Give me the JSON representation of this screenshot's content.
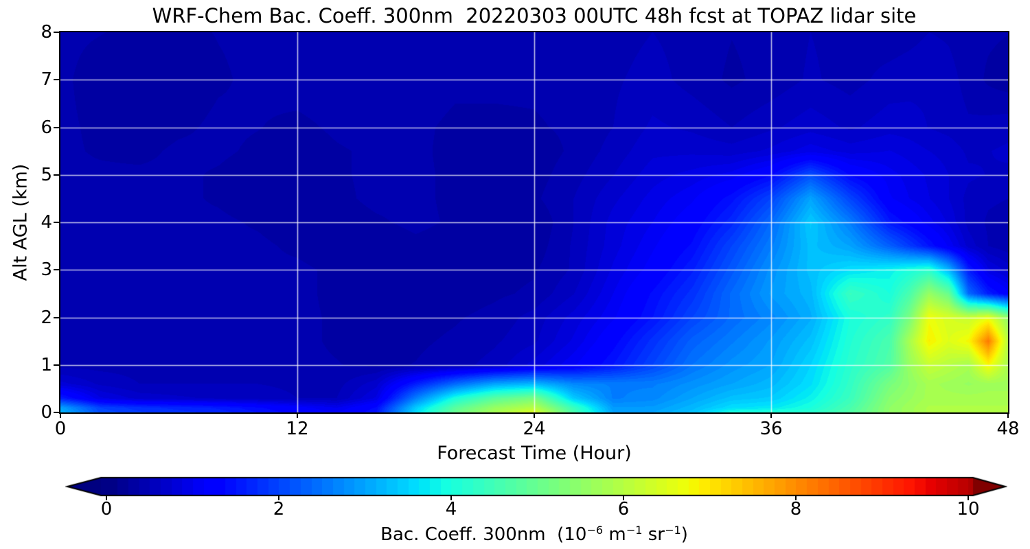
{
  "title": "WRF-Chem Bac. Coeff. 300nm  20220303 00UTC 48h fcst at TOPAZ lidar site",
  "axes": {
    "x": {
      "label": "Forecast Time (Hour)",
      "range": [
        0,
        48
      ],
      "ticks": [
        0,
        12,
        24,
        36,
        48
      ],
      "gridlines": [
        12,
        24,
        36
      ]
    },
    "y": {
      "label": "Alt AGL (km)",
      "range": [
        0,
        8
      ],
      "ticks": [
        0,
        1,
        2,
        3,
        4,
        5,
        6,
        7,
        8
      ],
      "gridlines": [
        1,
        2,
        3,
        4,
        5,
        6,
        7
      ]
    }
  },
  "colorbar": {
    "ticks": [
      0,
      2,
      4,
      6,
      8,
      10
    ],
    "range": [
      0,
      10
    ],
    "extend": "both",
    "colormap": "jet",
    "label_segments": [
      [
        "text",
        "Bac. Coeff. 300nm  (10"
      ],
      [
        "sup",
        "−6"
      ],
      [
        "text",
        " m"
      ],
      [
        "sup",
        "−1"
      ],
      [
        "text",
        " sr"
      ],
      [
        "sup",
        "−1"
      ],
      [
        "text",
        ")"
      ]
    ]
  },
  "chart_data": {
    "type": "heatmap",
    "title": "WRF-Chem Bac. Coeff. 300nm  20220303 00UTC 48h fcst at TOPAZ lidar site",
    "xlabel": "Forecast Time (Hour)",
    "ylabel": "Alt AGL (km)",
    "values_units": "1e-6 m^-1 sr^-1",
    "colormap": "jet",
    "vmin": 0,
    "vmax": 10,
    "color_scale_t_max": 10.5,
    "level_step": 0.125,
    "grid": true,
    "grid_color": "rgba(255,255,255,0.75)",
    "x_hours": [
      0,
      2,
      4,
      6,
      8,
      10,
      12,
      14,
      16,
      18,
      20,
      22,
      24,
      26,
      28,
      30,
      32,
      34,
      36,
      38,
      40,
      42,
      43,
      44,
      45,
      46,
      47,
      48
    ],
    "y_km": [
      8,
      7,
      6,
      5.5,
      5,
      4.5,
      4,
      3.5,
      3,
      2.5,
      2,
      1.5,
      1,
      0.6,
      0.3,
      0.1,
      0
    ],
    "values": [
      [
        0.4,
        0.38,
        0.35,
        0.35,
        0.38,
        0.4,
        0.42,
        0.45,
        0.45,
        0.45,
        0.42,
        0.4,
        0.4,
        0.42,
        0.45,
        0.5,
        0.45,
        0.38,
        0.42,
        0.5,
        0.45,
        0.42,
        0.45,
        0.5,
        0.48,
        0.42,
        0.4,
        0.38
      ],
      [
        0.4,
        0.32,
        0.26,
        0.3,
        0.36,
        0.4,
        0.44,
        0.46,
        0.45,
        0.44,
        0.4,
        0.4,
        0.4,
        0.42,
        0.48,
        0.55,
        0.45,
        0.35,
        0.42,
        0.52,
        0.45,
        0.55,
        0.58,
        0.6,
        0.55,
        0.45,
        0.35,
        0.3
      ],
      [
        0.4,
        0.35,
        0.3,
        0.35,
        0.4,
        0.38,
        0.34,
        0.4,
        0.44,
        0.4,
        0.35,
        0.35,
        0.36,
        0.4,
        0.5,
        0.65,
        0.6,
        0.5,
        0.6,
        0.7,
        0.6,
        0.7,
        0.68,
        0.62,
        0.58,
        0.52,
        0.55,
        0.58
      ],
      [
        0.4,
        0.36,
        0.34,
        0.4,
        0.4,
        0.35,
        0.3,
        0.36,
        0.4,
        0.4,
        0.34,
        0.3,
        0.3,
        0.4,
        0.55,
        0.72,
        0.72,
        0.68,
        0.78,
        0.95,
        0.82,
        0.88,
        0.82,
        0.75,
        0.7,
        0.6,
        0.62,
        0.65
      ],
      [
        0.4,
        0.4,
        0.4,
        0.4,
        0.36,
        0.3,
        0.3,
        0.36,
        0.4,
        0.4,
        0.35,
        0.3,
        0.32,
        0.45,
        0.62,
        0.82,
        0.92,
        1.05,
        1.35,
        2.1,
        1.35,
        1.05,
        0.95,
        0.85,
        0.75,
        0.65,
        0.62,
        0.6
      ],
      [
        0.4,
        0.4,
        0.4,
        0.4,
        0.36,
        0.3,
        0.3,
        0.35,
        0.4,
        0.4,
        0.35,
        0.3,
        0.35,
        0.5,
        0.72,
        0.92,
        1.1,
        1.45,
        2.0,
        3.0,
        2.0,
        1.15,
        1.0,
        0.88,
        0.75,
        0.58,
        0.52,
        0.5
      ],
      [
        0.4,
        0.4,
        0.4,
        0.4,
        0.4,
        0.36,
        0.3,
        0.32,
        0.36,
        0.4,
        0.36,
        0.3,
        0.26,
        0.5,
        0.8,
        1.0,
        1.25,
        1.7,
        2.4,
        3.4,
        2.6,
        1.55,
        1.3,
        1.05,
        0.85,
        0.58,
        0.48,
        0.45
      ],
      [
        0.4,
        0.4,
        0.4,
        0.4,
        0.4,
        0.4,
        0.35,
        0.3,
        0.3,
        0.35,
        0.32,
        0.3,
        0.3,
        0.52,
        0.82,
        1.1,
        1.4,
        2.0,
        2.6,
        3.3,
        3.0,
        2.3,
        1.9,
        1.5,
        1.1,
        0.7,
        0.5,
        0.42
      ],
      [
        0.4,
        0.4,
        0.4,
        0.4,
        0.4,
        0.4,
        0.4,
        0.35,
        0.3,
        0.3,
        0.3,
        0.32,
        0.36,
        0.52,
        0.9,
        1.2,
        1.6,
        2.2,
        2.8,
        3.3,
        3.6,
        3.8,
        4.0,
        4.2,
        3.2,
        1.6,
        0.9,
        0.7
      ],
      [
        0.4,
        0.4,
        0.4,
        0.4,
        0.4,
        0.4,
        0.4,
        0.35,
        0.3,
        0.3,
        0.3,
        0.35,
        0.4,
        0.62,
        1.0,
        1.4,
        1.8,
        2.4,
        2.9,
        3.2,
        4.4,
        4.0,
        4.6,
        5.6,
        5.0,
        2.4,
        1.6,
        1.2
      ],
      [
        0.45,
        0.45,
        0.45,
        0.42,
        0.4,
        0.4,
        0.4,
        0.36,
        0.3,
        0.32,
        0.36,
        0.42,
        0.55,
        0.8,
        1.1,
        1.5,
        2.0,
        2.4,
        2.7,
        3.1,
        4.0,
        4.3,
        5.2,
        6.7,
        6.4,
        6.2,
        6.6,
        5.5
      ],
      [
        0.45,
        0.45,
        0.45,
        0.42,
        0.4,
        0.4,
        0.4,
        0.36,
        0.32,
        0.35,
        0.4,
        0.48,
        0.6,
        0.9,
        1.3,
        1.8,
        2.3,
        2.6,
        2.9,
        3.3,
        4.1,
        4.6,
        5.8,
        6.9,
        6.5,
        6.8,
        8.2,
        6.0
      ],
      [
        0.45,
        0.45,
        0.45,
        0.42,
        0.4,
        0.4,
        0.4,
        0.38,
        0.35,
        0.38,
        0.45,
        0.55,
        0.8,
        1.1,
        1.5,
        2.0,
        2.5,
        2.8,
        3.0,
        3.5,
        4.2,
        4.7,
        5.6,
        6.2,
        6.0,
        5.8,
        6.8,
        5.8
      ],
      [
        0.8,
        0.6,
        0.5,
        0.5,
        0.5,
        0.5,
        0.48,
        0.45,
        0.7,
        1.6,
        2.4,
        3.0,
        3.2,
        2.7,
        2.6,
        2.6,
        2.8,
        3.0,
        3.2,
        3.6,
        4.3,
        5.2,
        5.5,
        5.8,
        5.7,
        5.6,
        5.7,
        5.7
      ],
      [
        1.6,
        0.9,
        0.7,
        0.65,
        0.6,
        0.55,
        0.5,
        0.5,
        0.9,
        2.6,
        4.0,
        4.8,
        5.2,
        3.4,
        2.6,
        2.7,
        3.0,
        3.3,
        3.4,
        3.8,
        4.4,
        5.4,
        5.6,
        5.8,
        5.8,
        5.8,
        5.8,
        5.8
      ],
      [
        3.0,
        2.0,
        1.8,
        1.7,
        1.6,
        1.4,
        1.2,
        1.0,
        1.4,
        3.4,
        4.8,
        5.6,
        6.0,
        4.4,
        2.9,
        2.9,
        3.2,
        3.6,
        3.7,
        4.0,
        4.6,
        5.5,
        5.7,
        5.9,
        5.9,
        5.9,
        5.9,
        5.9
      ],
      [
        3.2,
        2.1,
        1.9,
        1.8,
        1.7,
        1.5,
        1.3,
        1.1,
        1.5,
        3.6,
        5.0,
        5.8,
        6.5,
        4.6,
        3.0,
        3.0,
        3.3,
        4.0,
        4.1,
        4.2,
        4.7,
        5.5,
        5.7,
        5.9,
        5.9,
        5.9,
        5.9,
        5.9
      ]
    ]
  }
}
